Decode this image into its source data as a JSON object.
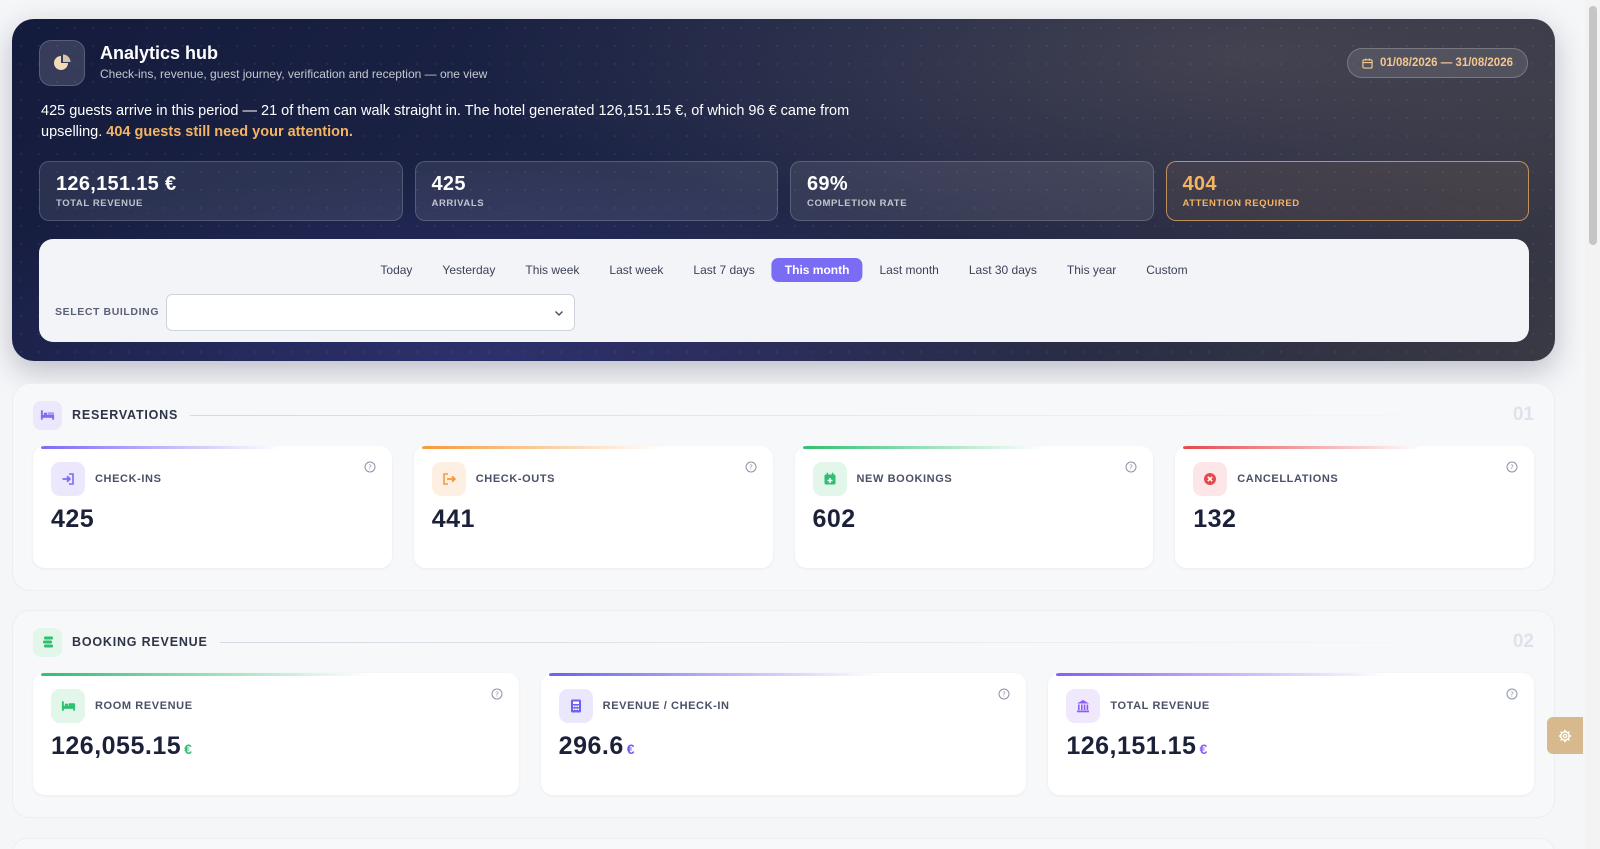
{
  "hero": {
    "title": "Analytics hub",
    "subtitle": "Check-ins, revenue, guest journey, verification and reception — one view",
    "date_range": "01/08/2026 — 31/08/2026",
    "summary_main": "425 guests arrive in this period — 21 of them can walk straight in. The hotel generated 126,151.15 €, of which 96 € came from upselling.",
    "summary_attention": "404 guests still need your attention.",
    "kpis": [
      {
        "value": "126,151.15 €",
        "label": "TOTAL REVENUE"
      },
      {
        "value": "425",
        "label": "ARRIVALS"
      },
      {
        "value": "69%",
        "label": "COMPLETION RATE"
      },
      {
        "value": "404",
        "label": "ATTENTION REQUIRED"
      }
    ]
  },
  "filters": {
    "periods": [
      "Today",
      "Yesterday",
      "This week",
      "Last week",
      "Last 7 days",
      "This month",
      "Last month",
      "Last 30 days",
      "This year",
      "Custom"
    ],
    "active_period": "This month",
    "building_label": "SELECT BUILDING",
    "building_value": ""
  },
  "reservations": {
    "title": "RESERVATIONS",
    "number": "01",
    "cards": [
      {
        "label": "CHECK-INS",
        "value": "425",
        "icon": "sign-in-icon",
        "color": "#7b6cf5"
      },
      {
        "label": "CHECK-OUTS",
        "value": "441",
        "icon": "sign-out-icon",
        "color": "#f59a3c"
      },
      {
        "label": "NEW BOOKINGS",
        "value": "602",
        "icon": "calendar-plus-icon",
        "color": "#2fbf71"
      },
      {
        "label": "CANCELLATIONS",
        "value": "132",
        "icon": "cancel-icon",
        "color": "#e5484d"
      }
    ]
  },
  "booking_revenue": {
    "title": "BOOKING REVENUE",
    "number": "02",
    "cards": [
      {
        "label": "ROOM REVENUE",
        "value": "126,055.15",
        "currency": "€",
        "icon": "bed-icon",
        "color": "#2fbf71"
      },
      {
        "label": "REVENUE / CHECK-IN",
        "value": "296.6",
        "currency": "€",
        "icon": "calculator-icon",
        "color": "#6d5ff0"
      },
      {
        "label": "TOTAL REVENUE",
        "value": "126,151.15",
        "currency": "€",
        "icon": "bank-icon",
        "color": "#8b5cf6"
      }
    ]
  }
}
